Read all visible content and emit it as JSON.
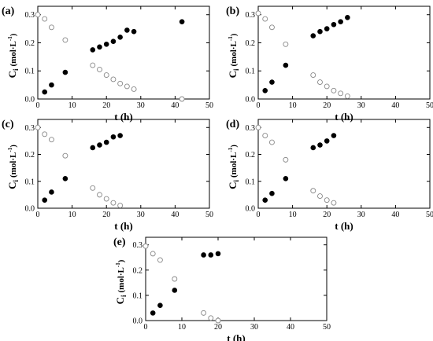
{
  "chart_data": [
    {
      "type": "scatter",
      "panel": "(a)",
      "xlabel": "t (h)",
      "ylabel": "C",
      "ylabel_sub": "i",
      "ylabel_unit": "(mol·L",
      "ylabel_sup": "-1",
      "ylabel_close": ")",
      "xlim": [
        0,
        50
      ],
      "ylim": [
        0,
        0.33
      ],
      "xticks": [
        "0",
        "10",
        "20",
        "30",
        "40",
        "50"
      ],
      "yticks": [
        "0.0",
        "0.1",
        "0.2",
        "0.3"
      ],
      "grid": false,
      "series": [
        {
          "marker": "open-circle",
          "x": [
            0,
            2,
            4,
            8,
            16,
            18,
            20,
            22,
            24,
            26,
            28,
            42
          ],
          "y": [
            0.3,
            0.285,
            0.255,
            0.21,
            0.12,
            0.105,
            0.085,
            0.07,
            0.055,
            0.045,
            0.035,
            0.0
          ]
        },
        {
          "marker": "filled-circle",
          "x": [
            2,
            4,
            8,
            16,
            18,
            20,
            22,
            24,
            26,
            28,
            42
          ],
          "y": [
            0.025,
            0.05,
            0.095,
            0.175,
            0.185,
            0.195,
            0.205,
            0.22,
            0.245,
            0.24,
            0.275
          ]
        }
      ]
    },
    {
      "type": "scatter",
      "panel": "(b)",
      "xlabel": "t (h)",
      "ylabel": "C",
      "ylabel_sub": "i",
      "ylabel_unit": "(mol·L",
      "ylabel_sup": "-1",
      "ylabel_close": ")",
      "xlim": [
        0,
        50
      ],
      "ylim": [
        0,
        0.33
      ],
      "xticks": [
        "0",
        "10",
        "20",
        "30",
        "40",
        "50"
      ],
      "yticks": [
        "0.0",
        "0.1",
        "0.2",
        "0.3"
      ],
      "grid": false,
      "series": [
        {
          "marker": "open-circle",
          "x": [
            0,
            2,
            4,
            8,
            16,
            18,
            20,
            22,
            24,
            26
          ],
          "y": [
            0.305,
            0.285,
            0.255,
            0.195,
            0.085,
            0.06,
            0.045,
            0.03,
            0.02,
            0.01
          ]
        },
        {
          "marker": "filled-circle",
          "x": [
            2,
            4,
            8,
            16,
            18,
            20,
            22,
            24,
            26
          ],
          "y": [
            0.03,
            0.06,
            0.12,
            0.225,
            0.24,
            0.25,
            0.265,
            0.275,
            0.29
          ]
        }
      ]
    },
    {
      "type": "scatter",
      "panel": "(c)",
      "xlabel": "t (h)",
      "ylabel": "C",
      "ylabel_sub": "i",
      "ylabel_unit": "(mol·L",
      "ylabel_sup": "-1",
      "ylabel_close": ")",
      "xlim": [
        0,
        50
      ],
      "ylim": [
        0,
        0.33
      ],
      "xticks": [
        "0",
        "10",
        "20",
        "30",
        "40",
        "50"
      ],
      "yticks": [
        "0.0",
        "0.1",
        "0.2",
        "0.3"
      ],
      "grid": false,
      "series": [
        {
          "marker": "open-circle",
          "x": [
            0,
            2,
            4,
            8,
            16,
            18,
            20,
            22,
            24
          ],
          "y": [
            0.3,
            0.275,
            0.255,
            0.195,
            0.075,
            0.05,
            0.035,
            0.02,
            0.01
          ]
        },
        {
          "marker": "filled-circle",
          "x": [
            2,
            4,
            8,
            16,
            18,
            20,
            22,
            24
          ],
          "y": [
            0.03,
            0.06,
            0.11,
            0.225,
            0.235,
            0.245,
            0.265,
            0.27
          ]
        }
      ]
    },
    {
      "type": "scatter",
      "panel": "(d)",
      "xlabel": "t (h)",
      "ylabel": "C",
      "ylabel_sub": "i",
      "ylabel_unit": "(mol·L",
      "ylabel_sup": "-1",
      "ylabel_close": ")",
      "xlim": [
        0,
        50
      ],
      "ylim": [
        0,
        0.33
      ],
      "xticks": [
        "0",
        "10",
        "20",
        "30",
        "40",
        "50"
      ],
      "yticks": [
        "0.0",
        "0.1",
        "0.2",
        "0.3"
      ],
      "grid": false,
      "series": [
        {
          "marker": "open-circle",
          "x": [
            0,
            2,
            4,
            8,
            16,
            18,
            20,
            22
          ],
          "y": [
            0.3,
            0.27,
            0.245,
            0.18,
            0.065,
            0.045,
            0.03,
            0.02
          ]
        },
        {
          "marker": "filled-circle",
          "x": [
            2,
            4,
            8,
            16,
            18,
            20,
            22
          ],
          "y": [
            0.03,
            0.055,
            0.11,
            0.225,
            0.235,
            0.25,
            0.27
          ]
        }
      ]
    },
    {
      "type": "scatter",
      "panel": "(e)",
      "xlabel": "t (h)",
      "ylabel": "C",
      "ylabel_sub": "i",
      "ylabel_unit": "(mol·L",
      "ylabel_sup": "-1",
      "ylabel_close": ")",
      "xlim": [
        0,
        50
      ],
      "ylim": [
        0,
        0.33
      ],
      "xticks": [
        "0",
        "10",
        "20",
        "30",
        "40",
        "50"
      ],
      "yticks": [
        "0.0",
        "0.1",
        "0.2",
        "0.3"
      ],
      "grid": false,
      "series": [
        {
          "marker": "open-circle",
          "x": [
            0,
            2,
            4,
            8,
            16,
            18,
            20
          ],
          "y": [
            0.295,
            0.265,
            0.24,
            0.165,
            0.03,
            0.01,
            0.0
          ]
        },
        {
          "marker": "filled-circle",
          "x": [
            2,
            4,
            8,
            16,
            18,
            20
          ],
          "y": [
            0.03,
            0.06,
            0.12,
            0.26,
            0.26,
            0.265
          ]
        }
      ]
    }
  ]
}
